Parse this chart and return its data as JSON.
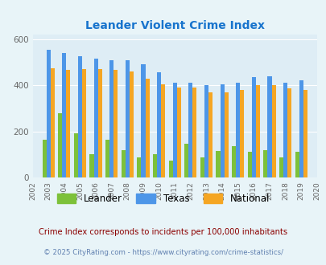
{
  "title": "Leander Violent Crime Index",
  "title_color": "#1874cd",
  "years": [
    2002,
    2003,
    2004,
    2005,
    2006,
    2007,
    2008,
    2009,
    2010,
    2011,
    2012,
    2013,
    2014,
    2015,
    2016,
    2017,
    2018,
    2019,
    2020
  ],
  "leander": [
    0,
    163,
    280,
    190,
    100,
    163,
    118,
    88,
    100,
    75,
    148,
    88,
    115,
    135,
    110,
    120,
    88,
    110,
    0
  ],
  "texas": [
    0,
    553,
    540,
    527,
    517,
    510,
    510,
    492,
    455,
    410,
    410,
    400,
    405,
    410,
    435,
    440,
    410,
    420,
    0
  ],
  "national": [
    0,
    475,
    465,
    470,
    470,
    466,
    458,
    430,
    405,
    390,
    390,
    368,
    370,
    380,
    400,
    400,
    386,
    380,
    0
  ],
  "leander_color": "#7dc13a",
  "texas_color": "#4d96e8",
  "national_color": "#f5a623",
  "bg_color": "#e8f4f8",
  "plot_bg": "#deedf5",
  "ylim": [
    0,
    620
  ],
  "yticks": [
    0,
    200,
    400,
    600
  ],
  "footnote1": "Crime Index corresponds to incidents per 100,000 inhabitants",
  "footnote2": "© 2025 CityRating.com - https://www.cityrating.com/crime-statistics/",
  "footnote1_color": "#8b0000",
  "footnote2_color": "#6080b0"
}
